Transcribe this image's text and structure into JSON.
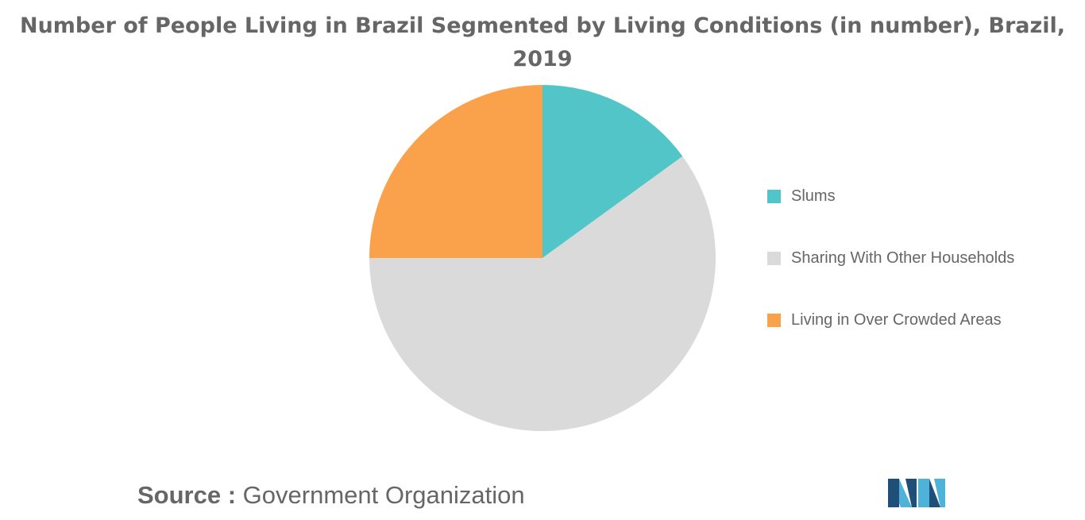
{
  "title": {
    "line1": "Number of People Living in Brazil Segmented by Living Conditions (in number), Brazil,",
    "line2": "2019"
  },
  "chart_data": {
    "type": "pie",
    "title": "Number of People Living in Brazil Segmented by Living Conditions (in number), Brazil, 2019",
    "slices": [
      {
        "label": "Slums",
        "value": 15,
        "color": "#52c5c9"
      },
      {
        "label": "Sharing With Other Households",
        "value": 60,
        "color": "#dadada"
      },
      {
        "label": "Living in Over Crowded Areas",
        "value": 25,
        "color": "#f9a14b"
      }
    ],
    "start_angle_deg": 0,
    "direction": "clockwise",
    "legend_position": "right"
  },
  "source": {
    "label": "Source :",
    "text": "Government Organization"
  },
  "logo": {
    "icon": "mordor-intelligence-logo-icon",
    "colors": [
      "#1f4e79",
      "#4fb3d9"
    ]
  }
}
